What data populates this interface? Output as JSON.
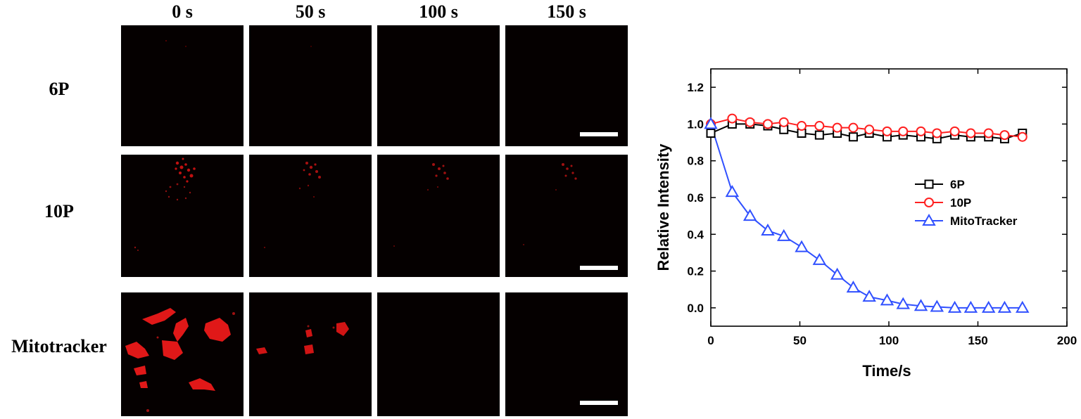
{
  "columns": [
    "0 s",
    "50 s",
    "100 s",
    "150 s"
  ],
  "rows": [
    "6P",
    "10P",
    "Mitotracker"
  ],
  "chart_data": {
    "type": "line",
    "xlabel": "Time/s",
    "ylabel": "Relative Intensity",
    "xlim": [
      0,
      200
    ],
    "ylim": [
      -0.1,
      1.3
    ],
    "xticks": [
      0,
      50,
      100,
      150,
      200
    ],
    "yticks": [
      0.0,
      0.2,
      0.4,
      0.6,
      0.8,
      1.0,
      1.2
    ],
    "legend_position": "right-middle",
    "x": [
      0,
      12,
      22,
      32,
      41,
      51,
      61,
      71,
      80,
      89,
      99,
      108,
      118,
      127,
      137,
      146,
      156,
      165,
      175
    ],
    "series": [
      {
        "name": "6P",
        "marker": "square",
        "color": "#000000",
        "values": [
          0.95,
          1.0,
          1.0,
          0.99,
          0.97,
          0.95,
          0.94,
          0.95,
          0.93,
          0.95,
          0.93,
          0.94,
          0.93,
          0.92,
          0.94,
          0.93,
          0.93,
          0.92,
          0.95
        ]
      },
      {
        "name": "10P",
        "marker": "circle",
        "color": "#ff2020",
        "values": [
          1.0,
          1.03,
          1.01,
          1.0,
          1.01,
          0.99,
          0.99,
          0.98,
          0.98,
          0.97,
          0.96,
          0.96,
          0.96,
          0.95,
          0.96,
          0.95,
          0.95,
          0.94,
          0.93
        ]
      },
      {
        "name": "MitoTracker",
        "marker": "triangle",
        "color": "#3050ff",
        "values": [
          1.0,
          0.63,
          0.5,
          0.42,
          0.39,
          0.33,
          0.26,
          0.18,
          0.11,
          0.06,
          0.04,
          0.02,
          0.01,
          0.005,
          0.0,
          0.0,
          0.0,
          0.0,
          0.0
        ]
      }
    ]
  }
}
